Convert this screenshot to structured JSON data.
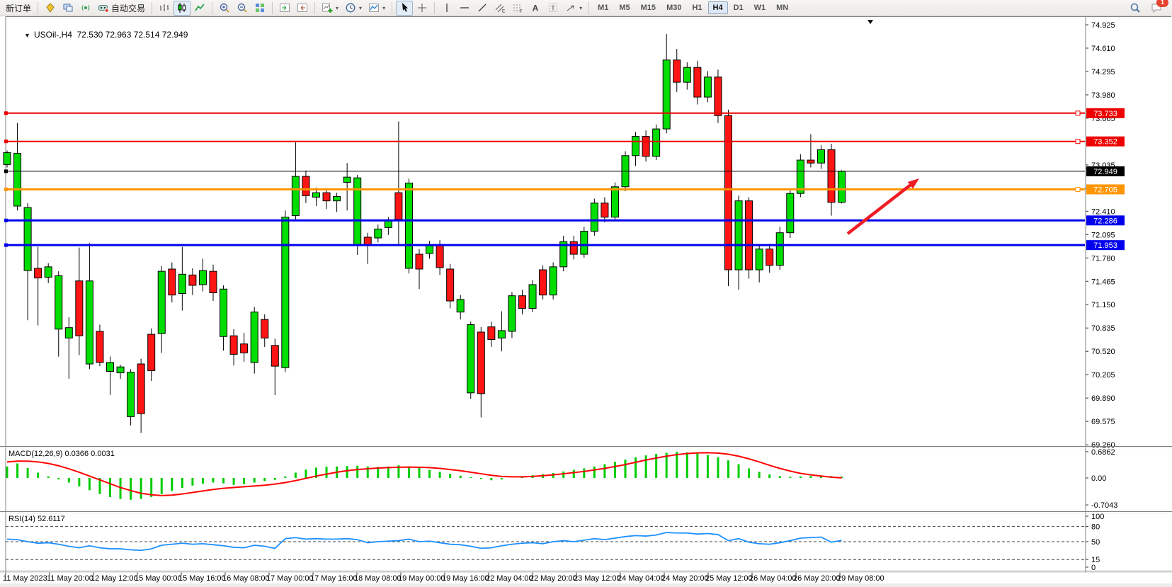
{
  "toolbar": {
    "new_order_label": "新订单",
    "auto_trading_label": "自动交易",
    "buttons": [
      {
        "name": "new-order-button",
        "label": "新订单"
      },
      {
        "sep": true
      },
      {
        "name": "market-watch-icon",
        "icon": "market"
      },
      {
        "name": "terminal-icon",
        "icon": "terminal"
      },
      {
        "name": "signals-icon",
        "icon": "signal"
      },
      {
        "name": "auto-trading-button",
        "icon": "autotrade",
        "label": "自动交易"
      },
      {
        "sep": true
      },
      {
        "name": "bar-chart-button",
        "icon": "bars"
      },
      {
        "name": "candlestick-chart-button",
        "icon": "candles",
        "active": true
      },
      {
        "name": "line-chart-button",
        "icon": "linechart"
      },
      {
        "sep": true
      },
      {
        "name": "zoom-in-button",
        "icon": "zoomin"
      },
      {
        "name": "zoom-out-button",
        "icon": "zoomout"
      },
      {
        "name": "tile-windows-button",
        "icon": "tile"
      },
      {
        "sep": true
      },
      {
        "name": "auto-scroll-button",
        "icon": "autoscroll"
      },
      {
        "name": "chart-shift-button",
        "icon": "chartshift"
      },
      {
        "sep": true
      },
      {
        "name": "new-chart-button",
        "icon": "newchart",
        "dropdown": true
      },
      {
        "name": "profiles-button",
        "icon": "clock",
        "dropdown": true
      },
      {
        "name": "indicators-button",
        "icon": "indicator",
        "dropdown": true
      },
      {
        "sep": true
      },
      {
        "name": "cursor-button",
        "icon": "cursor",
        "active": true
      },
      {
        "name": "crosshair-button",
        "icon": "crosshair"
      },
      {
        "sep": true
      },
      {
        "name": "vertical-line-button",
        "icon": "vline"
      },
      {
        "name": "horizontal-line-button",
        "icon": "hline"
      },
      {
        "name": "trendline-button",
        "icon": "trend"
      },
      {
        "name": "channel-button",
        "icon": "channel"
      },
      {
        "name": "fibonacci-button",
        "icon": "fibo"
      },
      {
        "name": "text-button",
        "icon": "textA"
      },
      {
        "name": "text-label-button",
        "icon": "labelT"
      },
      {
        "name": "arrows-button",
        "icon": "shapes",
        "dropdown": true
      },
      {
        "sep": true
      }
    ],
    "timeframes": [
      "M1",
      "M5",
      "M15",
      "M30",
      "H1",
      "H4",
      "D1",
      "W1",
      "MN"
    ],
    "active_timeframe": "H4",
    "notification_count": "1"
  },
  "chart": {
    "symbol_title": "USOil-,H4",
    "ohlc": "72.530 72.963 72.514 72.949",
    "macd_title": "MACD(12,26,9) 0.0366 0.0031",
    "rsi_title": "RSI(14) 52.6117",
    "macd_axis": [
      "0.6862",
      "0.00",
      "-0.7043"
    ],
    "rsi_axis": [
      "100",
      "80",
      "50",
      "15",
      "0"
    ],
    "rsi_levels": [
      80,
      50,
      15
    ],
    "price_ticks": [
      "74.925",
      "74.610",
      "74.295",
      "73.980",
      "73.665",
      "73.350",
      "73.035",
      "72.720",
      "72.410",
      "72.095",
      "71.780",
      "71.465",
      "71.150",
      "70.835",
      "70.520",
      "70.205",
      "69.890",
      "69.575",
      "69.260"
    ],
    "time_labels": [
      "11 May 2023",
      "11 May 20:00",
      "12 May 12:00",
      "15 May 00:00",
      "15 May 16:00",
      "16 May 08:00",
      "17 May 00:00",
      "17 May 16:00",
      "18 May 08:00",
      "19 May 00:00",
      "19 May 16:00",
      "22 May 04:00",
      "22 May 20:00",
      "23 May 12:00",
      "24 May 04:00",
      "24 May 20:00",
      "25 May 12:00",
      "26 May 04:00",
      "26 May 20:00",
      "29 May 08:00"
    ],
    "hlines": [
      {
        "price": 73.733,
        "label": "73.733",
        "color": "#ee0000",
        "width": 2,
        "right_marker": true
      },
      {
        "price": 73.352,
        "label": "73.352",
        "color": "#ee0000",
        "width": 2,
        "right_marker": true
      },
      {
        "price": 72.949,
        "label": "72.949",
        "color": "#000000",
        "width": 1,
        "right_marker": false
      },
      {
        "price": 72.705,
        "label": "72.705",
        "color": "#ff9500",
        "width": 3,
        "right_marker": true
      },
      {
        "price": 72.286,
        "label": "72.286",
        "color": "#0000ee",
        "width": 3,
        "right_marker": false
      },
      {
        "price": 71.953,
        "label": "71.953",
        "color": "#0000ee",
        "width": 3,
        "right_marker": false
      }
    ],
    "colors": {
      "bull": "#00dd00",
      "bear": "#ff1414",
      "wick": "#000000",
      "macd_hist": "#00cc00",
      "macd_signal": "#ff0000",
      "rsi_line": "#1e90ff",
      "arrow": "#ef1c25"
    }
  },
  "chart_data": {
    "type": "candlestick",
    "symbol": "USOil",
    "timeframe": "H4",
    "title": "USOil-,H4 72.530 72.963 72.514 72.949",
    "ylim": [
      69.26,
      74.925
    ],
    "candles": [
      [
        73.04,
        73.23,
        73.0,
        73.2
      ],
      [
        72.48,
        73.6,
        72.42,
        73.19
      ],
      [
        71.61,
        72.52,
        70.94,
        72.46
      ],
      [
        71.64,
        71.93,
        70.87,
        71.51
      ],
      [
        71.52,
        71.71,
        71.44,
        71.66
      ],
      [
        70.82,
        71.6,
        70.45,
        71.54
      ],
      [
        70.7,
        70.98,
        70.15,
        70.84
      ],
      [
        71.47,
        71.92,
        70.47,
        70.73
      ],
      [
        70.35,
        71.98,
        70.28,
        71.47
      ],
      [
        70.79,
        70.88,
        70.32,
        70.37
      ],
      [
        70.25,
        70.45,
        69.93,
        70.37
      ],
      [
        70.23,
        70.34,
        70.15,
        70.31
      ],
      [
        69.64,
        70.28,
        69.52,
        70.24
      ],
      [
        70.35,
        70.42,
        69.42,
        69.68
      ],
      [
        70.75,
        70.83,
        70.12,
        70.26
      ],
      [
        70.76,
        71.67,
        70.5,
        71.6
      ],
      [
        71.63,
        71.72,
        71.18,
        71.28
      ],
      [
        71.3,
        71.93,
        71.07,
        71.56
      ],
      [
        71.55,
        71.64,
        71.28,
        71.41
      ],
      [
        71.42,
        71.77,
        71.33,
        71.61
      ],
      [
        71.6,
        71.69,
        71.2,
        71.31
      ],
      [
        70.72,
        71.41,
        70.53,
        71.36
      ],
      [
        70.73,
        70.82,
        70.33,
        70.48
      ],
      [
        70.62,
        70.77,
        70.38,
        70.5
      ],
      [
        70.37,
        71.12,
        70.22,
        71.05
      ],
      [
        70.95,
        71.02,
        70.58,
        70.7
      ],
      [
        70.6,
        70.69,
        69.93,
        70.32
      ],
      [
        70.3,
        72.42,
        70.24,
        72.33
      ],
      [
        72.35,
        73.34,
        72.28,
        72.88
      ],
      [
        72.88,
        72.96,
        72.52,
        72.62
      ],
      [
        72.6,
        72.73,
        72.48,
        72.66
      ],
      [
        72.66,
        72.71,
        72.44,
        72.55
      ],
      [
        72.55,
        72.66,
        72.4,
        72.61
      ],
      [
        72.8,
        73.06,
        72.42,
        72.87
      ],
      [
        71.95,
        72.9,
        71.82,
        72.86
      ],
      [
        72.06,
        72.12,
        71.7,
        71.95
      ],
      [
        72.05,
        72.23,
        71.99,
        72.17
      ],
      [
        72.19,
        72.33,
        72.09,
        72.29
      ],
      [
        72.66,
        73.62,
        71.96,
        72.3
      ],
      [
        71.64,
        72.85,
        71.57,
        72.79
      ],
      [
        71.83,
        71.9,
        71.36,
        71.63
      ],
      [
        71.84,
        72.01,
        71.77,
        71.96
      ],
      [
        71.96,
        72.02,
        71.55,
        71.65
      ],
      [
        71.63,
        71.7,
        71.1,
        71.2
      ],
      [
        71.05,
        71.28,
        70.95,
        71.22
      ],
      [
        69.96,
        70.92,
        69.88,
        70.88
      ],
      [
        70.78,
        70.85,
        69.63,
        69.95
      ],
      [
        70.85,
        70.92,
        70.58,
        70.68
      ],
      [
        70.7,
        71.06,
        70.52,
        70.8
      ],
      [
        70.79,
        71.32,
        70.7,
        71.27
      ],
      [
        71.27,
        71.35,
        71.02,
        71.1
      ],
      [
        71.1,
        71.48,
        71.05,
        71.42
      ],
      [
        71.62,
        71.68,
        71.22,
        71.28
      ],
      [
        71.28,
        71.72,
        71.22,
        71.66
      ],
      [
        71.66,
        72.08,
        71.6,
        72.0
      ],
      [
        72.0,
        72.08,
        71.76,
        71.83
      ],
      [
        71.83,
        72.2,
        71.78,
        72.14
      ],
      [
        72.14,
        72.58,
        72.08,
        72.52
      ],
      [
        72.52,
        72.6,
        72.26,
        72.33
      ],
      [
        72.33,
        72.8,
        72.28,
        72.74
      ],
      [
        72.74,
        73.22,
        72.68,
        73.16
      ],
      [
        73.16,
        73.48,
        73.02,
        73.42
      ],
      [
        73.42,
        73.5,
        73.08,
        73.15
      ],
      [
        73.15,
        73.58,
        73.1,
        73.52
      ],
      [
        73.52,
        74.8,
        73.46,
        74.45
      ],
      [
        74.45,
        74.6,
        74.02,
        74.15
      ],
      [
        74.15,
        74.42,
        74.05,
        74.35
      ],
      [
        74.35,
        74.44,
        73.85,
        73.95
      ],
      [
        73.95,
        74.3,
        73.88,
        74.22
      ],
      [
        74.22,
        74.32,
        73.6,
        73.7
      ],
      [
        73.7,
        73.78,
        71.4,
        71.62
      ],
      [
        71.62,
        72.62,
        71.35,
        72.55
      ],
      [
        72.55,
        72.6,
        71.5,
        71.62
      ],
      [
        71.62,
        71.96,
        71.45,
        71.9
      ],
      [
        71.9,
        71.97,
        71.58,
        71.68
      ],
      [
        71.68,
        72.2,
        71.62,
        72.12
      ],
      [
        72.12,
        72.72,
        72.05,
        72.65
      ],
      [
        72.65,
        73.18,
        72.6,
        73.1
      ],
      [
        73.1,
        73.45,
        73.0,
        73.06
      ],
      [
        73.06,
        73.3,
        72.98,
        73.24
      ],
      [
        73.24,
        73.32,
        72.35,
        72.53
      ],
      [
        72.53,
        72.963,
        72.514,
        72.949
      ]
    ],
    "macd_histogram": [
      0.3,
      0.38,
      0.26,
      0.14,
      0.04,
      -0.04,
      -0.12,
      -0.22,
      -0.32,
      -0.42,
      -0.5,
      -0.55,
      -0.57,
      -0.55,
      -0.5,
      -0.42,
      -0.34,
      -0.26,
      -0.2,
      -0.15,
      -0.12,
      -0.14,
      -0.18,
      -0.16,
      -0.12,
      -0.08,
      -0.05,
      0.04,
      0.14,
      0.22,
      0.27,
      0.29,
      0.3,
      0.31,
      0.32,
      0.3,
      0.29,
      0.3,
      0.33,
      0.3,
      0.26,
      0.21,
      0.16,
      0.11,
      0.06,
      0.02,
      -0.03,
      -0.06,
      -0.04,
      0.0,
      0.04,
      0.07,
      0.1,
      0.13,
      0.17,
      0.21,
      0.25,
      0.3,
      0.36,
      0.42,
      0.48,
      0.54,
      0.59,
      0.63,
      0.66,
      0.686,
      0.67,
      0.64,
      0.6,
      0.54,
      0.46,
      0.36,
      0.25,
      0.16,
      0.09,
      0.05,
      0.03,
      0.04,
      0.05,
      0.06,
      0.05,
      0.0366
    ],
    "macd_signal": [
      0.42,
      0.44,
      0.44,
      0.42,
      0.38,
      0.32,
      0.24,
      0.15,
      0.05,
      -0.05,
      -0.15,
      -0.25,
      -0.33,
      -0.4,
      -0.44,
      -0.46,
      -0.45,
      -0.42,
      -0.38,
      -0.34,
      -0.3,
      -0.27,
      -0.25,
      -0.23,
      -0.21,
      -0.19,
      -0.16,
      -0.12,
      -0.07,
      -0.01,
      0.05,
      0.1,
      0.15,
      0.19,
      0.22,
      0.24,
      0.26,
      0.27,
      0.28,
      0.285,
      0.28,
      0.27,
      0.25,
      0.22,
      0.19,
      0.15,
      0.11,
      0.07,
      0.04,
      0.03,
      0.03,
      0.04,
      0.06,
      0.08,
      0.11,
      0.14,
      0.17,
      0.21,
      0.25,
      0.3,
      0.35,
      0.41,
      0.47,
      0.52,
      0.57,
      0.61,
      0.64,
      0.655,
      0.66,
      0.65,
      0.62,
      0.57,
      0.5,
      0.42,
      0.33,
      0.25,
      0.18,
      0.12,
      0.08,
      0.05,
      0.02,
      0.0031
    ],
    "rsi": [
      55,
      54,
      50,
      47,
      48,
      45,
      41,
      38,
      42,
      38,
      36,
      36,
      34,
      33,
      36,
      43,
      45,
      47,
      45,
      46,
      44,
      42,
      39,
      38,
      43,
      41,
      37,
      56,
      58,
      55,
      56,
      55,
      55,
      56,
      54,
      48,
      50,
      51,
      52,
      55,
      50,
      51,
      48,
      45,
      44,
      41,
      37,
      38,
      42,
      45,
      47,
      48,
      46,
      50,
      52,
      50,
      53,
      56,
      54,
      57,
      60,
      62,
      61,
      63,
      68,
      67,
      67,
      65,
      66,
      64,
      52,
      56,
      49,
      46,
      45,
      48,
      52,
      57,
      58,
      59,
      49,
      52.6117
    ]
  }
}
